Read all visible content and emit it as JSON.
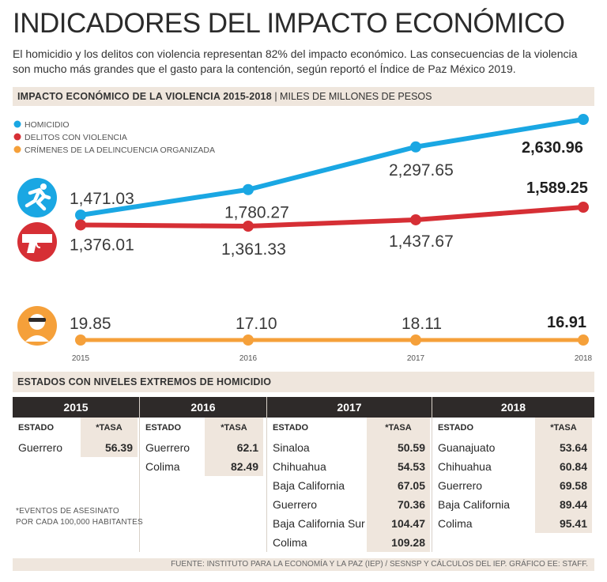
{
  "header": {
    "title": "INDICADORES DEL IMPACTO ECONÓMICO",
    "subtitle": "El homicidio y los delitos con violencia representan 82% del impacto económico. Las consecuencias de la violencia son mucho más grandes que el gasto para la contención, según reportó el Índice de Paz México 2019."
  },
  "section1": {
    "label_bold": "IMPACTO ECONÓMICO DE LA VIOLENCIA 2015-2018",
    "label_rest": " | MILES DE MILLONES DE PESOS"
  },
  "section2": {
    "label": "ESTADOS CON NIVELES EXTREMOS DE HOMICIDIO"
  },
  "colors": {
    "homicidio": "#1aa7e3",
    "delitos": "#d62f35",
    "crimenes": "#f5a03a",
    "band": "#efe6dd",
    "dark": "#2e2a29"
  },
  "icons": [
    "runner-icon",
    "pistol-icon",
    "masked-criminal-icon"
  ],
  "chart_data": {
    "type": "line",
    "title": "IMPACTO ECONÓMICO DE LA VIOLENCIA 2015-2018",
    "unit": "MILES DE MILLONES DE PESOS",
    "x": [
      "2015",
      "2016",
      "2017",
      "2018"
    ],
    "series": [
      {
        "name": "HOMICIDIO",
        "values": [
          1471.03,
          1780.27,
          2297.65,
          2630.96
        ],
        "labels": [
          "1,471.03",
          "1,780.27",
          "2,297.65",
          "2,630.96"
        ]
      },
      {
        "name": "DELITOS CON VIOLENCIA",
        "values": [
          1376.01,
          1361.33,
          1437.67,
          1589.25
        ],
        "labels": [
          "1,376.01",
          "1,361.33",
          "1,437.67",
          "1,589.25"
        ]
      },
      {
        "name": "CRÍMENES DE LA DELINCUENCIA ORGANIZADA",
        "values": [
          19.85,
          17.1,
          18.11,
          16.91
        ],
        "labels": [
          "19.85",
          "17.10",
          "18.11",
          "16.91"
        ]
      }
    ],
    "legend_position": "top-left"
  },
  "table": {
    "state_header": "ESTADO",
    "rate_header": "*TASA",
    "years": [
      {
        "year": "2015",
        "rows": [
          {
            "state": "Guerrero",
            "rate": "56.39"
          }
        ]
      },
      {
        "year": "2016",
        "rows": [
          {
            "state": "Guerrero",
            "rate": "62.1"
          },
          {
            "state": "Colima",
            "rate": "82.49"
          }
        ]
      },
      {
        "year": "2017",
        "rows": [
          {
            "state": "Sinaloa",
            "rate": "50.59"
          },
          {
            "state": "Chihuahua",
            "rate": "54.53"
          },
          {
            "state": "Baja California",
            "rate": "67.05"
          },
          {
            "state": "Guerrero",
            "rate": "70.36"
          },
          {
            "state": "Baja California Sur",
            "rate": "104.47"
          },
          {
            "state": "Colima",
            "rate": "109.28"
          }
        ]
      },
      {
        "year": "2018",
        "rows": [
          {
            "state": "Guanajuato",
            "rate": "53.64"
          },
          {
            "state": "Chihuahua",
            "rate": "60.84"
          },
          {
            "state": "Guerrero",
            "rate": "69.58"
          },
          {
            "state": "Baja California",
            "rate": "89.44"
          },
          {
            "state": "Colima",
            "rate": "95.41"
          }
        ]
      }
    ]
  },
  "footnote": {
    "line1": "*EVENTOS DE ASESINATO",
    "line2": "POR CADA 100,000 HABITANTES"
  },
  "source": "FUENTE: INSTITUTO PARA LA ECONOMÍA Y LA PAZ (IEP) / SESNSP Y CÁLCULOS DEL IEP. GRÁFICO EE: STAFF."
}
